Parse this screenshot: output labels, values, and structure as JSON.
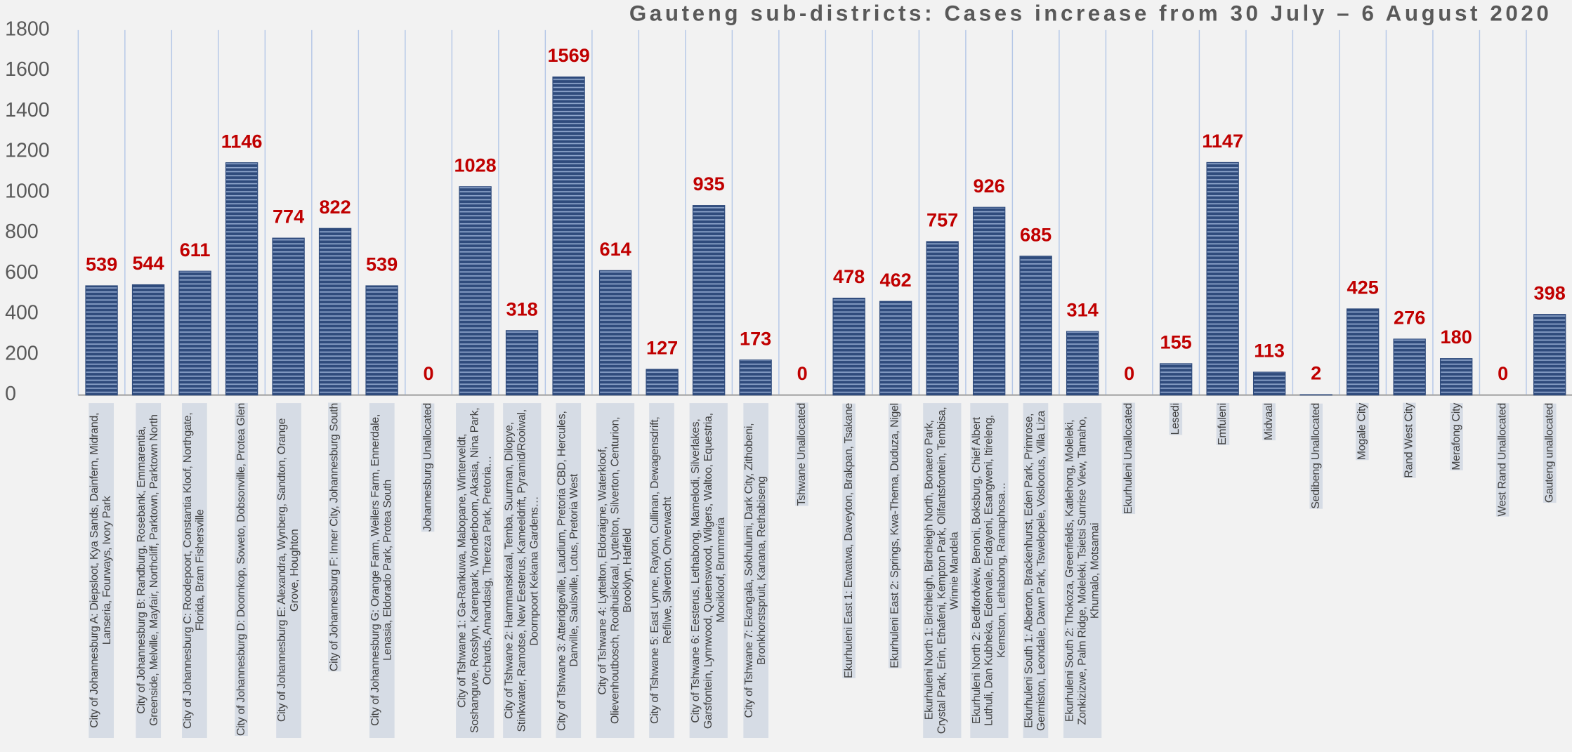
{
  "chart_data": {
    "type": "bar",
    "title": "Gauteng sub-districts: Cases increase from 30 July – 6 August 2020",
    "categories": [
      "City of Johannesburg A: Diepsloot, Kya Sands, Dainfern, Midrand, Lanseria, Fourways, Ivory Park",
      "City of Johannesburg B: Randburg, Rosebank, Emmarentia, Greenside, Melville, Mayfair, Northcliff, Parktown, Parktown North",
      "City of Johannesburg C: Roodepoort, Constantia Kloof, Northgate, Florida, Bram Fishersville",
      "City of Johannesburg D: Doornkop, Soweto, Dobsonville, Protea Glen",
      "City of Johannesburg E: Alexandra, Wynberg, Sandton, Orange Grove, Houghton",
      "City of Johannesburg F: Inner City, Johannesburg South",
      "City of Johannesburg G: Orange Farm, Weilers Farm, Ennerdale, Lenasia, Eldorado Park, Protea South",
      "Johannesburg Unallocated",
      "City of Tshwane 1: Ga-Rankuwa, Mabopane, Winterveldt, Soshanguve, Rosslyn, Karenpark, Wonderboom, Akasia, Nina Park, Orchards, Amandasig, Thereza Park, Pretoria…",
      "City of Tshwane 2: Hammanskraal, Temba, Suurman, Dilopye, Stinkwater, Ramotse, New Eesterus, Kameeldrift, Pyramid/Rooiwal, Doornpoort Kekana Gardens…",
      "City of Tshwane 3: Atteridgeville, Laudium, Pretoria CBD, Hercules, Danville, Saulsville, Lotus, Pretoria West",
      "City of Tshwane 4: Lyttelton, Eldoraigne, Waterkloof, Olievenhoutbosch, Rooihuiskraal, Lyttelton, Silverton, Centurion, Brooklyn, Hatfield",
      "City of Tshwane 5: East Lynne, Rayton, Cullinan, Dewagensdrift, Refilwe, Silverton, Onverwacht",
      "City of Tshwane 6: Eesterus, Lethabong, Mamelodi, Silverlakes, Garsfontein, Lynnwood, Queenswood, Wilgers, Waltoo, Equestria, Mooikloof, Brummeria",
      "City of Tshwane 7: Ekangala, Sokhulumi, Dark City, Zithobeni, Bronkhorstspruit, Kanana, Rethabiseng",
      "Tshwane Unallocated",
      "Ekurhuleni East 1: Etwatwa, Daveyton, Brakpan, Tsakane",
      "Ekurhuleni East 2: Springs, Kwa-Thema, Duduza, Nigel",
      "Ekurhuleni North 1: Birchleigh, Birchleigh North, Bonaero Park, Crystal Park, Erin, Ethafeni, Kempton Park, Olifantsfontein, Tembisa, Winnie Mandela",
      "Ekurhuleni North 2: Bedfordview, Benoni, Boksburg, Chief Albert Luthuli, Dan Kubheka, Edenvale, Endayeni, Esangweni, Itireleng, Kemston, Lethabong, Ramaphosa…",
      "Ekurhuleni South 1: Alberton, Brackenhurst, Eden Park, Primrose, Germiston, Leondale, Dawn Park, Tswelopele, Vosloorus, Villa Liza",
      "Ekurhuleni South 2: Thokoza, Greenfields, Katlehong, Moleleki, Zonkizizwe, Palm Ridge, Moleleki, Tsietsi Sunrise View, Tamaho, Khumalo, Motsamai",
      "Ekurhuleni Unallocated",
      "Lesedi",
      "Emfuleni",
      "Midvaal",
      "Sedibeng Unallocated",
      "Mogale City",
      "Rand West City",
      "Merafong City",
      "West Rand Unallocated",
      "Gauteng unallocated"
    ],
    "values": [
      539,
      544,
      611,
      1146,
      774,
      822,
      539,
      0,
      1028,
      318,
      1569,
      614,
      127,
      935,
      173,
      0,
      478,
      462,
      757,
      926,
      685,
      314,
      0,
      155,
      1147,
      113,
      2,
      425,
      276,
      180,
      0,
      398
    ],
    "color": "#2f4b7c",
    "label_color": "#c00000",
    "ylim": [
      0,
      1800
    ],
    "yticks": [
      0,
      200,
      400,
      600,
      800,
      1000,
      1200,
      1400,
      1600,
      1800
    ],
    "grid": false
  }
}
